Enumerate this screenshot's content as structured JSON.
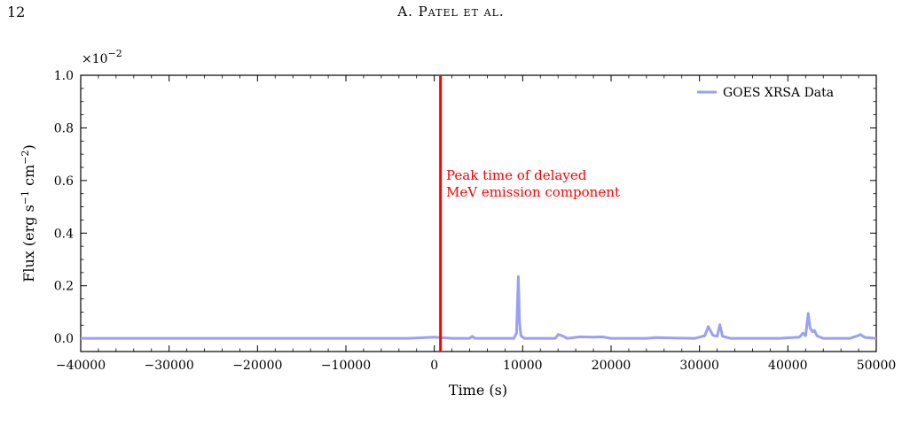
{
  "header": {
    "page_number": "12",
    "running_title": "A. Patel et al."
  },
  "chart_data": {
    "type": "line",
    "xlabel": "Time (s)",
    "ylabel_main": "Flux (erg s",
    "ylabel_sup1": "−1",
    "ylabel_mid": " cm",
    "ylabel_sup2": "−2",
    "ylabel_end": ")",
    "xlim": [
      -40000,
      50000
    ],
    "ylim": [
      -0.05,
      1.0
    ],
    "y_scale_factor": "×10",
    "y_scale_exp": "−2",
    "x_ticks": [
      -40000,
      -30000,
      -20000,
      -10000,
      0,
      10000,
      20000,
      30000,
      40000,
      50000
    ],
    "x_tick_labels": [
      "−40000",
      "−30000",
      "−20000",
      "−10000",
      "0",
      "10000",
      "20000",
      "30000",
      "40000",
      "50000"
    ],
    "y_ticks": [
      0.0,
      0.2,
      0.4,
      0.6,
      0.8,
      1.0
    ],
    "y_tick_labels": [
      "0.0",
      "0.2",
      "0.4",
      "0.6",
      "0.8",
      "1.0"
    ],
    "vline_x": 700,
    "vline_color": "#ff0000",
    "annotation_line1": "Peak time of delayed",
    "annotation_line2": "MeV emission component",
    "series": [
      {
        "name": "GOES XRSA Data",
        "color": "#9aa0f5",
        "x": [
          -40000,
          -30000,
          -20000,
          -10000,
          -3000,
          0,
          2000,
          4000,
          4300,
          4600,
          9000,
          9300,
          9500,
          9650,
          9800,
          10200,
          13700,
          14000,
          14300,
          14600,
          15000,
          16500,
          18000,
          19000,
          20000,
          24000,
          25000,
          29500,
          30600,
          31000,
          31500,
          32000,
          32300,
          32600,
          33500,
          37000,
          39000,
          40000,
          41300,
          41700,
          42000,
          42300,
          42500,
          42800,
          43000,
          43300,
          44000,
          47000,
          47900,
          48200,
          48700,
          50000
        ],
        "y": [
          0.0,
          0.0,
          0.0,
          0.0,
          0.0,
          0.005,
          0.0,
          0.0,
          0.008,
          0.0,
          0.0,
          0.02,
          0.235,
          0.06,
          0.01,
          0.0,
          0.0,
          0.015,
          0.012,
          0.008,
          0.0,
          0.006,
          0.005,
          0.006,
          0.0,
          0.0,
          0.003,
          0.0,
          0.01,
          0.045,
          0.012,
          0.008,
          0.052,
          0.008,
          0.0,
          0.0,
          0.0,
          0.002,
          0.005,
          0.02,
          0.01,
          0.095,
          0.04,
          0.025,
          0.03,
          0.01,
          0.0,
          0.0,
          0.01,
          0.015,
          0.004,
          0.0
        ]
      }
    ],
    "legend_position": "top-right",
    "grid": false
  }
}
